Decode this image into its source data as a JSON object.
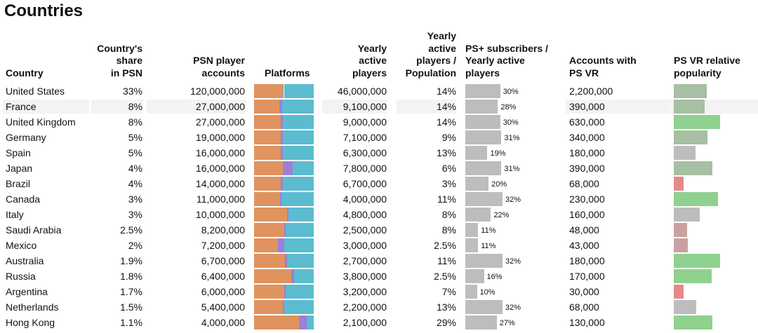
{
  "title": "Countries",
  "headers": {
    "country": "Country",
    "share": [
      "Country's",
      "share",
      "in PSN"
    ],
    "accounts": [
      "PSN player",
      "accounts"
    ],
    "platforms": "Platforms",
    "yearly": [
      "Yearly",
      "active",
      "players"
    ],
    "ratio": [
      "Yearly",
      "active",
      "players /",
      "Population"
    ],
    "psplus": [
      "PS+ subscribers /",
      "Yearly active",
      "players"
    ],
    "vr": [
      "Accounts with",
      "PS VR"
    ],
    "vrpop": [
      "PS VR relative",
      "popularity"
    ]
  },
  "colors": {
    "platform1": "#e0935e",
    "platform2": "#9c7fd8",
    "platform3": "#5bbcd0",
    "psplus_bar": "#bdbdbd",
    "vr_high": "#8fd18f",
    "vr_mid": "#a7bfa2",
    "vr_neutral": "#bdbdbd",
    "vr_low_mild": "#c9a1a1",
    "vr_low": "#e58a8a",
    "stripe": "#f3f3f3"
  },
  "chart_data": {
    "type": "table",
    "columns": [
      "Country",
      "Country's share in PSN",
      "PSN player accounts",
      "Platforms",
      "Yearly active players",
      "Yearly active players / Population",
      "PS+ subscribers / Yearly active players",
      "Accounts with PS VR",
      "PS VR relative popularity"
    ],
    "platforms_note": "stacked share per country: platform1 / platform2 / platform3 (fractions, visual estimate)",
    "rows": [
      {
        "country": "United States",
        "share": "33%",
        "accounts": "120,000,000",
        "platforms": [
          0.48,
          0.02,
          0.5
        ],
        "yearly": "46,000,000",
        "ratio": "14%",
        "psplus": "30%",
        "psplus_value": 30,
        "vr": "2,200,000",
        "vr_popularity": 0.7,
        "vr_tone": "mid"
      },
      {
        "country": "France",
        "share": "8%",
        "accounts": "27,000,000",
        "platforms": [
          0.42,
          0.05,
          0.53
        ],
        "yearly": "9,100,000",
        "ratio": "14%",
        "psplus": "28%",
        "psplus_value": 28,
        "vr": "390,000",
        "vr_popularity": 0.66,
        "vr_tone": "mid"
      },
      {
        "country": "United Kingdom",
        "share": "8%",
        "accounts": "27,000,000",
        "platforms": [
          0.45,
          0.03,
          0.52
        ],
        "yearly": "9,000,000",
        "ratio": "14%",
        "psplus": "30%",
        "psplus_value": 30,
        "vr": "630,000",
        "vr_popularity": 0.98,
        "vr_tone": "high"
      },
      {
        "country": "Germany",
        "share": "5%",
        "accounts": "19,000,000",
        "platforms": [
          0.45,
          0.03,
          0.52
        ],
        "yearly": "7,100,000",
        "ratio": "9%",
        "psplus": "31%",
        "psplus_value": 31,
        "vr": "340,000",
        "vr_popularity": 0.72,
        "vr_tone": "mid"
      },
      {
        "country": "Spain",
        "share": "5%",
        "accounts": "16,000,000",
        "platforms": [
          0.45,
          0.03,
          0.52
        ],
        "yearly": "6,300,000",
        "ratio": "13%",
        "psplus": "19%",
        "psplus_value": 19,
        "vr": "180,000",
        "vr_popularity": 0.47,
        "vr_tone": "neutral"
      },
      {
        "country": "Japan",
        "share": "4%",
        "accounts": "16,000,000",
        "platforms": [
          0.48,
          0.17,
          0.35
        ],
        "yearly": "7,800,000",
        "ratio": "6%",
        "psplus": "31%",
        "psplus_value": 31,
        "vr": "390,000",
        "vr_popularity": 0.82,
        "vr_tone": "mid"
      },
      {
        "country": "Brazil",
        "share": "4%",
        "accounts": "14,000,000",
        "platforms": [
          0.45,
          0.03,
          0.52
        ],
        "yearly": "6,700,000",
        "ratio": "3%",
        "psplus": "20%",
        "psplus_value": 20,
        "vr": "68,000",
        "vr_popularity": 0.21,
        "vr_tone": "low"
      },
      {
        "country": "Canada",
        "share": "3%",
        "accounts": "11,000,000",
        "platforms": [
          0.43,
          0.03,
          0.54
        ],
        "yearly": "4,000,000",
        "ratio": "11%",
        "psplus": "32%",
        "psplus_value": 32,
        "vr": "230,000",
        "vr_popularity": 0.94,
        "vr_tone": "high"
      },
      {
        "country": "Italy",
        "share": "3%",
        "accounts": "10,000,000",
        "platforms": [
          0.55,
          0.03,
          0.42
        ],
        "yearly": "4,800,000",
        "ratio": "8%",
        "psplus": "22%",
        "psplus_value": 22,
        "vr": "160,000",
        "vr_popularity": 0.55,
        "vr_tone": "neutral"
      },
      {
        "country": "Saudi Arabia",
        "share": "2.5%",
        "accounts": "8,200,000",
        "platforms": [
          0.5,
          0.03,
          0.47
        ],
        "yearly": "2,500,000",
        "ratio": "8%",
        "psplus": "11%",
        "psplus_value": 11,
        "vr": "48,000",
        "vr_popularity": 0.28,
        "vr_tone": "low_mild"
      },
      {
        "country": "Mexico",
        "share": "2%",
        "accounts": "7,200,000",
        "platforms": [
          0.4,
          0.1,
          0.5
        ],
        "yearly": "3,000,000",
        "ratio": "2.5%",
        "psplus": "11%",
        "psplus_value": 11,
        "vr": "43,000",
        "vr_popularity": 0.3,
        "vr_tone": "low_mild"
      },
      {
        "country": "Australia",
        "share": "1.9%",
        "accounts": "6,700,000",
        "platforms": [
          0.52,
          0.03,
          0.45
        ],
        "yearly": "2,700,000",
        "ratio": "11%",
        "psplus": "32%",
        "psplus_value": 32,
        "vr": "180,000",
        "vr_popularity": 0.98,
        "vr_tone": "high"
      },
      {
        "country": "Russia",
        "share": "1.8%",
        "accounts": "6,400,000",
        "platforms": [
          0.62,
          0.05,
          0.33
        ],
        "yearly": "3,800,000",
        "ratio": "2.5%",
        "psplus": "16%",
        "psplus_value": 16,
        "vr": "170,000",
        "vr_popularity": 0.8,
        "vr_tone": "high"
      },
      {
        "country": "Argentina",
        "share": "1.7%",
        "accounts": "6,000,000",
        "platforms": [
          0.5,
          0.03,
          0.47
        ],
        "yearly": "3,200,000",
        "ratio": "7%",
        "psplus": "10%",
        "psplus_value": 10,
        "vr": "30,000",
        "vr_popularity": 0.21,
        "vr_tone": "low"
      },
      {
        "country": "Netherlands",
        "share": "1.5%",
        "accounts": "5,400,000",
        "platforms": [
          0.48,
          0.03,
          0.49
        ],
        "yearly": "2,200,000",
        "ratio": "13%",
        "psplus": "32%",
        "psplus_value": 32,
        "vr": "68,000",
        "vr_popularity": 0.48,
        "vr_tone": "neutral"
      },
      {
        "country": "Hong Kong",
        "share": "1.1%",
        "accounts": "4,000,000",
        "platforms": [
          0.75,
          0.13,
          0.12
        ],
        "yearly": "2,100,000",
        "ratio": "29%",
        "psplus": "27%",
        "psplus_value": 27,
        "vr": "130,000",
        "vr_popularity": 0.82,
        "vr_tone": "high"
      }
    ]
  }
}
